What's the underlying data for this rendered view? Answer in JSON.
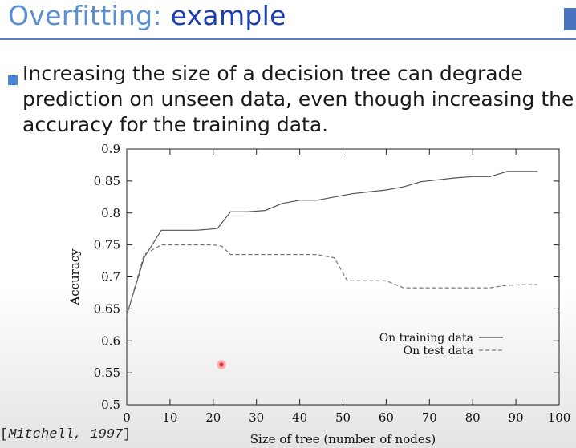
{
  "slide": {
    "title_main": "Overfitting: ",
    "title_accent": "example",
    "bullet": "Increasing the size of a decision tree can degrade prediction on unseen data, even though increasing the accuracy for the training data.",
    "citation_author": "Mitchell, 1997",
    "citation_open": "[",
    "citation_close": "]"
  },
  "colors": {
    "title": "#5a8fd2",
    "title_accent": "#1d3fb0",
    "bullet": "#4a86d8",
    "rule": "#5a7fb8"
  },
  "chart_data": {
    "type": "line",
    "xlabel": "Size of tree (number of nodes)",
    "ylabel": "Accuracy",
    "xlim": [
      0,
      100
    ],
    "ylim": [
      0.5,
      0.9
    ],
    "xticks": [
      0,
      10,
      20,
      30,
      40,
      50,
      60,
      70,
      80,
      90,
      100
    ],
    "yticks": [
      0.5,
      0.55,
      0.6,
      0.65,
      0.7,
      0.75,
      0.8,
      0.85,
      0.9
    ],
    "grid": false,
    "legend_position": "lower-right",
    "series": [
      {
        "name": "On training data",
        "style": "solid",
        "x": [
          0,
          4,
          8,
          12,
          16,
          20,
          21,
          24,
          28,
          32,
          36,
          40,
          44,
          48,
          52,
          56,
          60,
          64,
          68,
          72,
          76,
          80,
          84,
          88,
          92,
          95
        ],
        "y": [
          0.64,
          0.73,
          0.773,
          0.773,
          0.773,
          0.775,
          0.776,
          0.802,
          0.802,
          0.804,
          0.815,
          0.82,
          0.82,
          0.825,
          0.83,
          0.833,
          0.836,
          0.841,
          0.849,
          0.852,
          0.855,
          0.857,
          0.857,
          0.865,
          0.865,
          0.865
        ]
      },
      {
        "name": "On test data",
        "style": "dashed",
        "x": [
          0,
          4,
          8,
          12,
          16,
          20,
          22,
          24,
          28,
          32,
          36,
          40,
          44,
          48,
          51,
          56,
          60,
          64,
          68,
          72,
          76,
          80,
          84,
          88,
          92,
          95
        ],
        "y": [
          0.64,
          0.735,
          0.75,
          0.75,
          0.75,
          0.75,
          0.748,
          0.735,
          0.735,
          0.735,
          0.735,
          0.735,
          0.735,
          0.73,
          0.694,
          0.694,
          0.694,
          0.683,
          0.683,
          0.683,
          0.683,
          0.683,
          0.683,
          0.687,
          0.688,
          0.688
        ]
      }
    ]
  }
}
